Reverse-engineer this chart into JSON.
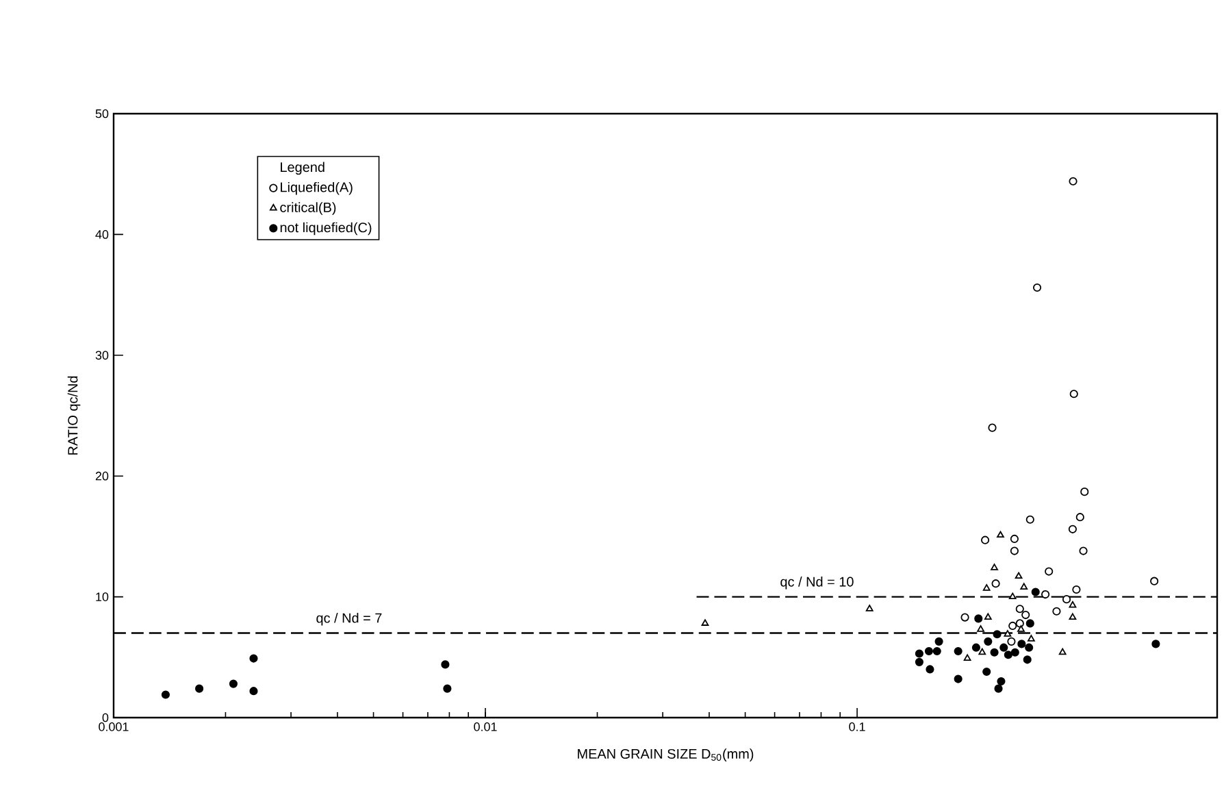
{
  "chart_data": {
    "type": "scatter",
    "xlabel": "MEAN GRAIN SIZE  D$_{50}$(mm)",
    "ylabel": "RATIO qc/Nd",
    "legend_title": "Legend",
    "log": "x",
    "xlim": [
      0.001,
      0.93
    ],
    "xticks": [
      0.001,
      0.01,
      0.1
    ],
    "ylim": [
      0,
      50
    ],
    "yticks": [
      0,
      10,
      20,
      30,
      40,
      50
    ],
    "grid": false,
    "legend": "top left",
    "series": [
      {
        "name": "Liquefied(A)",
        "color": "#000000",
        "marker": "circle",
        "x": [
          0.409,
          0.292,
          0.398,
          0.38,
          0.221,
          0.265,
          0.265,
          0.406,
          0.328,
          0.63,
          0.236,
          0.321,
          0.389,
          0.366,
          0.344,
          0.195,
          0.274,
          0.284,
          0.262,
          0.274,
          0.26,
          0.381,
          0.305,
          0.383,
          0.231
        ],
        "values": [
          18.7,
          16.4,
          16.6,
          15.6,
          14.7,
          14.8,
          13.8,
          13.8,
          12.1,
          11.3,
          11.1,
          10.2,
          10.6,
          9.8,
          8.8,
          8.3,
          9.0,
          8.5,
          7.6,
          7.8,
          6.3,
          44.4,
          35.6,
          26.8,
          24.0
        ]
      },
      {
        "name": "critical(B)",
        "color": "#000000",
        "marker": "triangle",
        "x": [
          0.039,
          0.108,
          0.243,
          0.234,
          0.272,
          0.281,
          0.223,
          0.262,
          0.38,
          0.38,
          0.225,
          0.215,
          0.276,
          0.294,
          0.198,
          0.217,
          0.357,
          0.254
        ],
        "values": [
          7.8,
          9.0,
          15.1,
          12.4,
          11.7,
          10.8,
          10.7,
          10.0,
          9.3,
          8.3,
          8.3,
          7.3,
          7.3,
          6.5,
          4.9,
          5.4,
          5.4,
          6.9
        ]
      },
      {
        "name": "not liquefied(C)",
        "color": "#000000",
        "marker": "circle",
        "x": [
          0.00138,
          0.0017,
          0.0021,
          0.00238,
          0.00238,
          0.0078,
          0.0079,
          0.302,
          0.212,
          0.166,
          0.147,
          0.156,
          0.164,
          0.147,
          0.157,
          0.187,
          0.187,
          0.223,
          0.244,
          0.24,
          0.209,
          0.225,
          0.238,
          0.248,
          0.255,
          0.277,
          0.29,
          0.292,
          0.287,
          0.636,
          0.234,
          0.266
        ],
        "values": [
          1.9,
          2.4,
          2.8,
          4.9,
          2.2,
          4.4,
          2.4,
          10.4,
          8.2,
          6.3,
          5.3,
          5.5,
          5.5,
          4.6,
          4.0,
          5.5,
          3.2,
          3.8,
          3.0,
          2.4,
          5.8,
          6.3,
          6.9,
          5.8,
          5.2,
          6.1,
          5.8,
          7.8,
          4.8,
          6.1,
          5.4,
          5.4
        ]
      },
      {
        "type": "line",
        "color": "#000000",
        "line_style": "dashed",
        "x": [
          0.037,
          0.93
        ],
        "values": [
          10,
          10
        ]
      }
    ],
    "ref_lines": [
      {
        "axis": "y",
        "value": 7,
        "color": "#000000",
        "line_style": "dashed"
      }
    ],
    "annotations": [
      {
        "text": "qc / Nd = 7",
        "x": 0.0043,
        "y": 7
      },
      {
        "text": "qc / Nd = 10",
        "x": 0.078,
        "y": 10
      }
    ]
  }
}
